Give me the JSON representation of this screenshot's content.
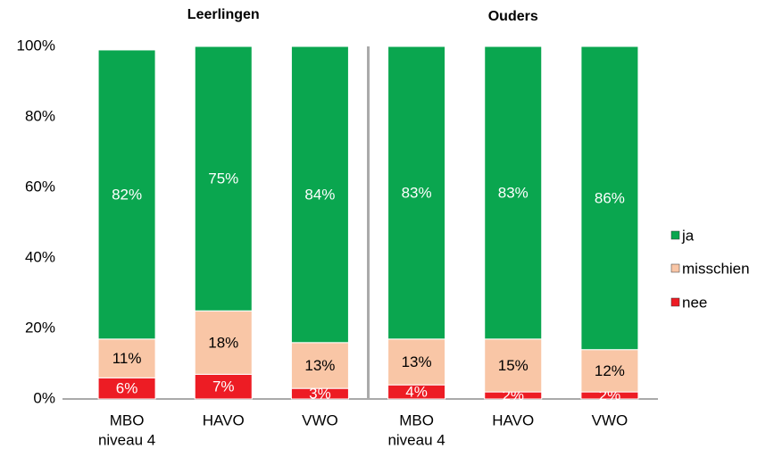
{
  "chart_data": {
    "type": "stacked_bar",
    "groups": [
      "Leerlingen",
      "Ouders"
    ],
    "categories": [
      [
        "MBO",
        "niveau 4"
      ],
      [
        "HAVO"
      ],
      [
        "VWO"
      ],
      [
        "MBO",
        "niveau 4"
      ],
      [
        "HAVO"
      ],
      [
        "VWO"
      ]
    ],
    "series": [
      {
        "name": "nee",
        "color": "#ed1c24",
        "label_color": "#ffffff",
        "values": [
          6,
          7,
          3,
          4,
          2,
          2
        ],
        "value_labels": [
          "6%",
          "7%",
          "3%",
          "4%",
          "2%",
          "2%"
        ]
      },
      {
        "name": "misschien",
        "color": "#f9c6a6",
        "label_color": "#000000",
        "values": [
          11,
          18,
          13,
          13,
          15,
          12
        ],
        "value_labels": [
          "11%",
          "18%",
          "13%",
          "13%",
          "15%",
          "12%"
        ]
      },
      {
        "name": "ja",
        "color": "#0aa64f",
        "label_color": "#ffffff",
        "values": [
          82,
          75,
          84,
          83,
          83,
          86
        ],
        "value_labels": [
          "82%",
          "75%",
          "84%",
          "83%",
          "83%",
          "86%"
        ]
      }
    ],
    "ylim": [
      0,
      100
    ],
    "yticks": [
      {
        "value": 0,
        "label": "0%"
      },
      {
        "value": 20,
        "label": "20%"
      },
      {
        "value": 40,
        "label": "40%"
      },
      {
        "value": 60,
        "label": "60%"
      },
      {
        "value": 80,
        "label": "80%"
      },
      {
        "value": 100,
        "label": "100%"
      }
    ],
    "legend": "right"
  }
}
